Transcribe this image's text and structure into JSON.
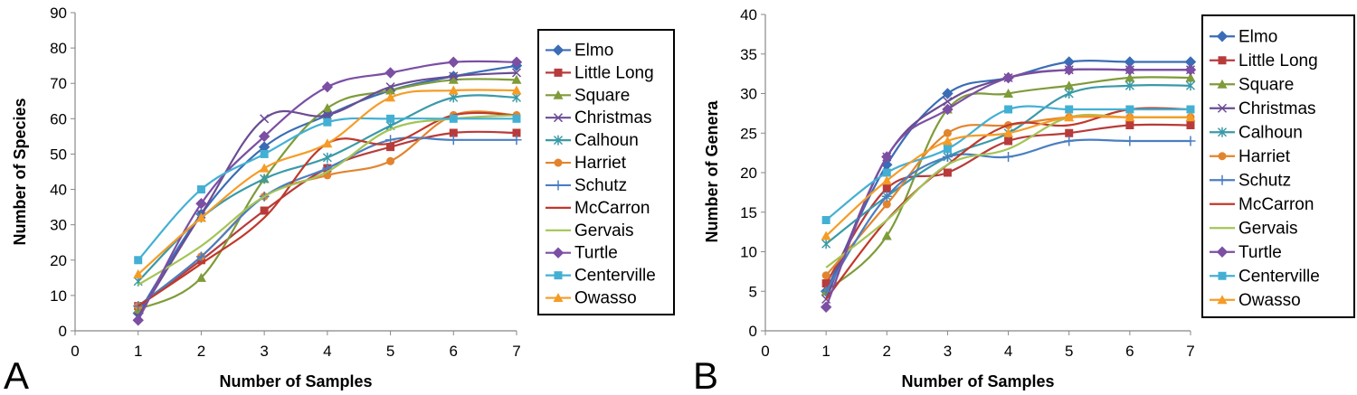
{
  "chart_data": [
    {
      "type": "line",
      "panel_label": "A",
      "xlabel": "Number of Samples",
      "ylabel": "Number of Species",
      "xlim": [
        0,
        7
      ],
      "ylim": [
        0,
        90
      ],
      "xticks": [
        "0",
        "1",
        "2",
        "3",
        "4",
        "5",
        "6",
        "7"
      ],
      "yticks": [
        "0",
        "10",
        "20",
        "30",
        "40",
        "50",
        "60",
        "70",
        "80",
        "90"
      ],
      "x": [
        1,
        2,
        3,
        4,
        5,
        6,
        7
      ],
      "legend_position": "right",
      "series": [
        {
          "name": "Elmo",
          "color": "#3a6db5",
          "marker": "diamond",
          "values": [
            5,
            33,
            52,
            61,
            68,
            72,
            75
          ]
        },
        {
          "name": "Little Long",
          "color": "#b83b3b",
          "marker": "square",
          "values": [
            7,
            20,
            34,
            46,
            52,
            56,
            56
          ]
        },
        {
          "name": "Square",
          "color": "#7f9b3a",
          "marker": "triangle",
          "values": [
            6,
            15,
            43,
            63,
            68,
            71,
            71
          ]
        },
        {
          "name": "Christmas",
          "color": "#6a4c93",
          "marker": "x",
          "values": [
            4,
            33,
            60,
            61,
            69,
            72,
            73
          ]
        },
        {
          "name": "Calhoun",
          "color": "#3a9aa8",
          "marker": "star",
          "values": [
            14,
            32,
            43,
            49,
            58,
            66,
            66
          ]
        },
        {
          "name": "Harriet",
          "color": "#e2842e",
          "marker": "circle",
          "values": [
            7,
            21,
            38,
            44,
            48,
            61,
            61
          ]
        },
        {
          "name": "Schutz",
          "color": "#4a7ec2",
          "marker": "plus",
          "values": [
            7,
            21,
            38,
            46,
            54,
            54,
            54
          ]
        },
        {
          "name": "McCarron",
          "color": "#c0392b",
          "marker": "none",
          "values": [
            7,
            19,
            32,
            53,
            53,
            61,
            61
          ]
        },
        {
          "name": "Gervais",
          "color": "#a3c456",
          "marker": "none",
          "values": [
            13,
            24,
            38,
            45,
            57,
            60,
            61
          ]
        },
        {
          "name": "Turtle",
          "color": "#7b4fa3",
          "marker": "diamond",
          "values": [
            3,
            36,
            55,
            69,
            73,
            76,
            76
          ]
        },
        {
          "name": "Centerville",
          "color": "#43b0d3",
          "marker": "square",
          "values": [
            20,
            40,
            50,
            59,
            60,
            60,
            60
          ]
        },
        {
          "name": "Owasso",
          "color": "#f59c27",
          "marker": "triangle",
          "values": [
            16,
            32,
            46,
            53,
            66,
            68,
            68
          ]
        }
      ]
    },
    {
      "type": "line",
      "panel_label": "B",
      "xlabel": "Number of Samples",
      "ylabel": "Number of Genera",
      "xlim": [
        0,
        7
      ],
      "ylim": [
        0,
        40
      ],
      "xticks": [
        "0",
        "1",
        "2",
        "3",
        "4",
        "5",
        "6",
        "7"
      ],
      "yticks": [
        "0",
        "5",
        "10",
        "15",
        "20",
        "25",
        "30",
        "35",
        "40"
      ],
      "x": [
        1,
        2,
        3,
        4,
        5,
        6,
        7
      ],
      "legend_position": "right",
      "series": [
        {
          "name": "Elmo",
          "color": "#3a6db5",
          "marker": "diamond",
          "values": [
            5,
            21,
            30,
            32,
            34,
            34,
            34
          ]
        },
        {
          "name": "Little Long",
          "color": "#b83b3b",
          "marker": "square",
          "values": [
            6,
            18,
            20,
            24,
            25,
            26,
            26
          ]
        },
        {
          "name": "Square",
          "color": "#7f9b3a",
          "marker": "triangle",
          "values": [
            5,
            12,
            28,
            30,
            31,
            32,
            32
          ]
        },
        {
          "name": "Christmas",
          "color": "#6a4c93",
          "marker": "x",
          "values": [
            4,
            22,
            29,
            32,
            33,
            33,
            33
          ]
        },
        {
          "name": "Calhoun",
          "color": "#3a9aa8",
          "marker": "star",
          "values": [
            11,
            17,
            22,
            25,
            30,
            31,
            31
          ]
        },
        {
          "name": "Harriet",
          "color": "#e2842e",
          "marker": "circle",
          "values": [
            7,
            16,
            25,
            26,
            27,
            27,
            27
          ]
        },
        {
          "name": "Schutz",
          "color": "#4a7ec2",
          "marker": "plus",
          "values": [
            5,
            17,
            22,
            22,
            24,
            24,
            24
          ]
        },
        {
          "name": "McCarron",
          "color": "#c0392b",
          "marker": "none",
          "values": [
            4,
            14,
            21,
            26,
            26,
            28,
            28
          ]
        },
        {
          "name": "Gervais",
          "color": "#a3c456",
          "marker": "none",
          "values": [
            8,
            14,
            21,
            23,
            27,
            27,
            27
          ]
        },
        {
          "name": "Turtle",
          "color": "#7b4fa3",
          "marker": "diamond",
          "values": [
            3,
            22,
            28,
            32,
            33,
            33,
            33
          ]
        },
        {
          "name": "Centerville",
          "color": "#43b0d3",
          "marker": "square",
          "values": [
            14,
            20,
            23,
            28,
            28,
            28,
            28
          ]
        },
        {
          "name": "Owasso",
          "color": "#f59c27",
          "marker": "triangle",
          "values": [
            12,
            19,
            24,
            25,
            27,
            27,
            27
          ]
        }
      ]
    }
  ]
}
